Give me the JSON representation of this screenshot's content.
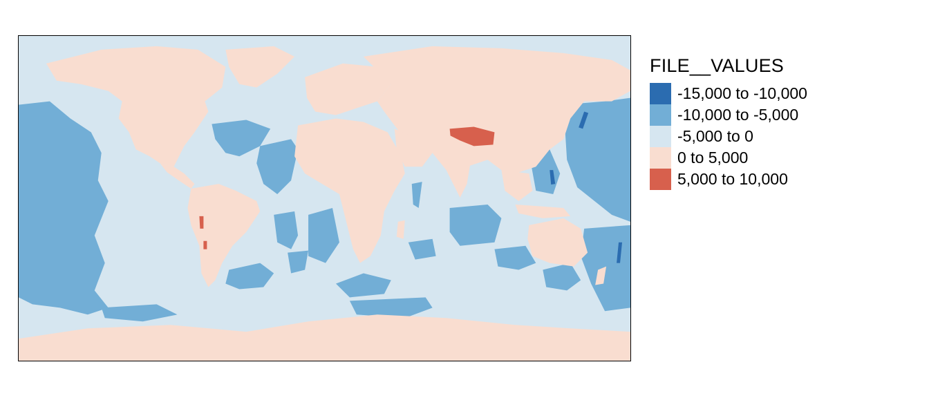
{
  "legend": {
    "title": "FILE__VALUES",
    "classes": [
      {
        "label": "-15,000 to -10,000",
        "color": "#2b6cb0"
      },
      {
        "label": "-10,000 to -5,000",
        "color": "#72aed6"
      },
      {
        "label": "-5,000 to 0",
        "color": "#d6e6f0"
      },
      {
        "label": "0 to 5,000",
        "color": "#f9ddd0"
      },
      {
        "label": "5,000 to 10,000",
        "color": "#d7604d"
      }
    ]
  }
}
